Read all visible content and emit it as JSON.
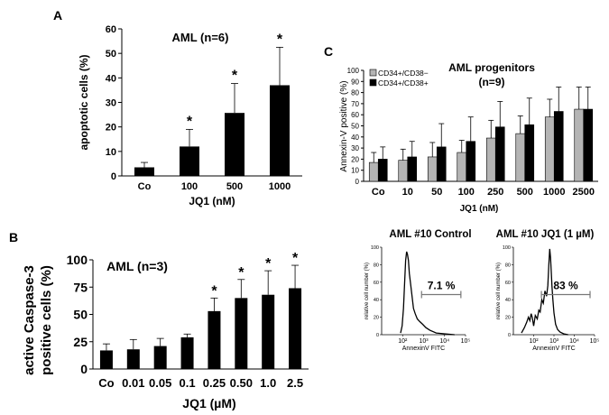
{
  "figure": {
    "panel_labels": {
      "a": "A",
      "b": "B",
      "c": "C"
    },
    "hist_titles": [
      "AML #10 Control",
      "AML #10 JQ1 (1 µM)"
    ]
  },
  "chart_data": [
    {
      "id": "A",
      "type": "bar",
      "title": "AML (n=6)",
      "xlabel": "JQ1 (nM)",
      "ylabel": "apoptotic cells (%)",
      "categories": [
        "Co",
        "100",
        "500",
        "1000"
      ],
      "values": [
        3.5,
        12,
        25.7,
        37
      ],
      "errors": [
        2,
        7,
        12,
        15.5
      ],
      "significant": [
        false,
        true,
        true,
        true
      ],
      "sig_marker": "*",
      "ylim": [
        0,
        60
      ],
      "yticks": [
        0,
        10,
        20,
        30,
        40,
        50,
        60
      ],
      "color": "#000000"
    },
    {
      "id": "B",
      "type": "bar",
      "title": "AML  (n=3)",
      "xlabel": "JQ1 (µM)",
      "ylabel": "active Caspase-3 positive cells (%)",
      "ylabel_lines": [
        "active Caspase-3",
        "positive cells (%)"
      ],
      "categories": [
        "Co",
        "0.01",
        "0.05",
        "0.1",
        "0.25",
        "0.50",
        "1.0",
        "2.5"
      ],
      "values": [
        17,
        18,
        21,
        29,
        53,
        65,
        68,
        74
      ],
      "errors": [
        6,
        9,
        7,
        3,
        12,
        17,
        22,
        21
      ],
      "significant": [
        false,
        false,
        false,
        false,
        true,
        true,
        true,
        true
      ],
      "sig_marker": "*",
      "ylim": [
        0,
        100
      ],
      "yticks": [
        0,
        25,
        50,
        75,
        100
      ],
      "color": "#000000"
    },
    {
      "id": "C",
      "type": "bar",
      "title": "AML progenitors",
      "subtitle": "(n=9)",
      "xlabel": "JQ1 (nM)",
      "ylabel": "Annexin-V positive (%)",
      "categories": [
        "Co",
        "10",
        "50",
        "100",
        "250",
        "500",
        "1000",
        "2500"
      ],
      "series": [
        {
          "name": "CD34+/CD38−",
          "color": "#b4b4b4",
          "values": [
            17,
            19,
            22,
            26,
            39,
            43,
            58,
            65
          ],
          "errors": [
            9,
            10,
            13,
            11,
            16,
            16,
            16,
            20
          ]
        },
        {
          "name": "CD34+/CD38+",
          "color": "#000000",
          "values": [
            20,
            22,
            31,
            36,
            49,
            51,
            63,
            65
          ],
          "errors": [
            11,
            14,
            21,
            22,
            23,
            24,
            22,
            20
          ]
        }
      ],
      "ylim": [
        0,
        100
      ],
      "yticks": [
        0,
        10,
        20,
        30,
        40,
        50,
        60,
        70,
        80,
        90,
        100
      ],
      "legend_position": "top-left"
    },
    {
      "id": "C-hist-control",
      "type": "line",
      "title": "AML #10 Control",
      "xlabel": "AnnexinV FITC",
      "ylabel": "relative cell number (%)",
      "x_log": true,
      "xlim": [
        10,
        100000
      ],
      "xticks": [
        "10²",
        "10³",
        "10⁴",
        "10⁵"
      ],
      "ylim": [
        0,
        100
      ],
      "yticks": [
        0,
        20,
        40,
        60,
        80,
        100
      ],
      "x": [
        80,
        95,
        110,
        125,
        140,
        155,
        170,
        190,
        210,
        240,
        280,
        330,
        400,
        500,
        650,
        900,
        1300,
        2000,
        4000,
        10000,
        30000
      ],
      "y": [
        2,
        10,
        30,
        60,
        85,
        95,
        92,
        85,
        70,
        58,
        45,
        30,
        24,
        18,
        15,
        12,
        8,
        5,
        2,
        1,
        0
      ],
      "gate_label": "7.1 %",
      "gate_range": [
        800,
        60000
      ]
    },
    {
      "id": "C-hist-jq1",
      "type": "line",
      "title": "AML #10 JQ1 (1 µM)",
      "xlabel": "AnnexinV FITC",
      "ylabel": "relative cell number (%)",
      "x_log": true,
      "xlim": [
        10,
        100000
      ],
      "xticks": [
        "10²",
        "10³",
        "10⁴",
        "10⁵"
      ],
      "ylim": [
        0,
        100
      ],
      "yticks": [
        0,
        20,
        40,
        60,
        80,
        100
      ],
      "x": [
        25,
        35,
        45,
        55,
        65,
        75,
        85,
        100,
        120,
        150,
        180,
        210,
        250,
        300,
        360,
        430,
        500,
        560,
        620,
        680,
        740,
        800,
        880,
        1000,
        1200,
        1500,
        2000,
        3000,
        5000
      ],
      "y": [
        2,
        8,
        14,
        20,
        16,
        24,
        20,
        10,
        22,
        18,
        28,
        26,
        40,
        36,
        50,
        44,
        56,
        80,
        98,
        88,
        70,
        55,
        40,
        25,
        12,
        6,
        3,
        1,
        0
      ],
      "gate_label": "83 %",
      "gate_range": [
        240,
        60000
      ]
    }
  ]
}
